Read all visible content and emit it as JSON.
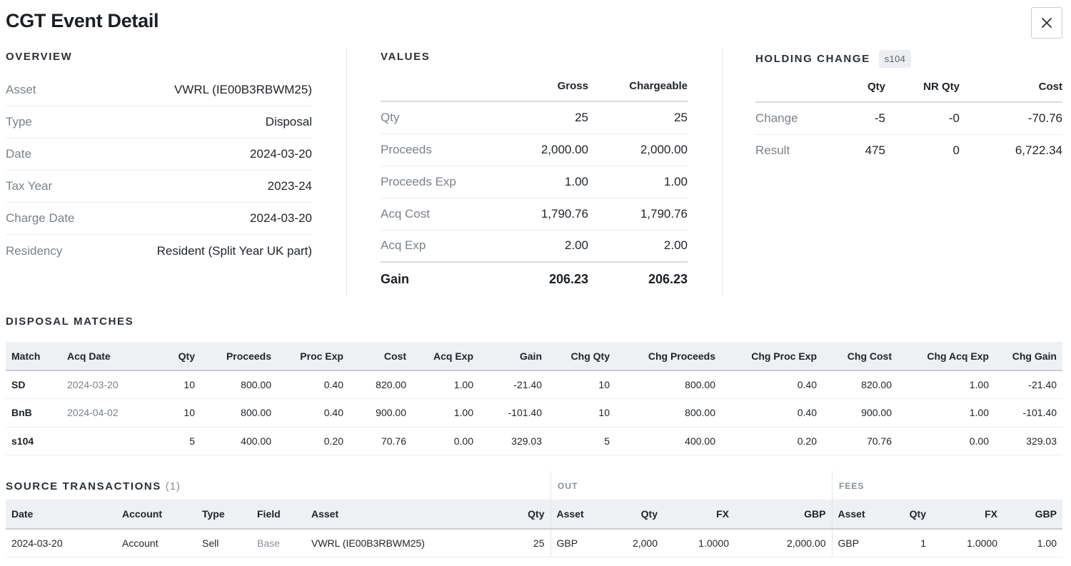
{
  "title": "CGT Event Detail",
  "close_icon": "close-icon",
  "overview": {
    "title": "OVERVIEW",
    "rows": [
      {
        "label": "Asset",
        "value": "VWRL (IE00B3RBWM25)"
      },
      {
        "label": "Type",
        "value": "Disposal"
      },
      {
        "label": "Date",
        "value": "2024-03-20"
      },
      {
        "label": "Tax Year",
        "value": "2023-24"
      },
      {
        "label": "Charge Date",
        "value": "2024-03-20"
      },
      {
        "label": "Residency",
        "value": "Resident (Split Year UK part)"
      }
    ]
  },
  "values": {
    "title": "VALUES",
    "col_gross": "Gross",
    "col_chargeable": "Chargeable",
    "rows": [
      {
        "label": "Qty",
        "gross": "25",
        "chargeable": "25"
      },
      {
        "label": "Proceeds",
        "gross": "2,000.00",
        "chargeable": "2,000.00"
      },
      {
        "label": "Proceeds Exp",
        "gross": "1.00",
        "chargeable": "1.00"
      },
      {
        "label": "Acq Cost",
        "gross": "1,790.76",
        "chargeable": "1,790.76"
      },
      {
        "label": "Acq Exp",
        "gross": "2.00",
        "chargeable": "2.00"
      }
    ],
    "total": {
      "label": "Gain",
      "gross": "206.23",
      "chargeable": "206.23"
    }
  },
  "holding": {
    "title": "HOLDING CHANGE",
    "badge": "s104",
    "col_qty": "Qty",
    "col_nr_qty": "NR Qty",
    "col_cost": "Cost",
    "rows": [
      {
        "label": "Change",
        "qty": "-5",
        "nr_qty": "-0",
        "cost": "-70.76"
      },
      {
        "label": "Result",
        "qty": "475",
        "nr_qty": "0",
        "cost": "6,722.34"
      }
    ]
  },
  "disposal_matches": {
    "title": "DISPOSAL MATCHES",
    "columns": [
      "Match",
      "Acq Date",
      "Qty",
      "Proceeds",
      "Proc Exp",
      "Cost",
      "Acq Exp",
      "Gain",
      "Chg Qty",
      "Chg Proceeds",
      "Chg Proc Exp",
      "Chg Cost",
      "Chg Acq Exp",
      "Chg Gain"
    ],
    "rows": [
      [
        "SD",
        "2024-03-20",
        "10",
        "800.00",
        "0.40",
        "820.00",
        "1.00",
        "-21.40",
        "10",
        "800.00",
        "0.40",
        "820.00",
        "1.00",
        "-21.40"
      ],
      [
        "BnB",
        "2024-04-02",
        "10",
        "800.00",
        "0.40",
        "900.00",
        "1.00",
        "-101.40",
        "10",
        "800.00",
        "0.40",
        "900.00",
        "1.00",
        "-101.40"
      ],
      [
        "s104",
        "",
        "5",
        "400.00",
        "0.20",
        "70.76",
        "0.00",
        "329.03",
        "5",
        "400.00",
        "0.20",
        "70.76",
        "0.00",
        "329.03"
      ]
    ]
  },
  "source_transactions": {
    "title": "SOURCE TRANSACTIONS",
    "count": "(1)",
    "group_out": "OUT",
    "group_fees": "FEES",
    "columns": [
      "Date",
      "Account",
      "Type",
      "Field",
      "Asset",
      "Qty",
      "Asset",
      "Qty",
      "FX",
      "GBP",
      "Asset",
      "Qty",
      "FX",
      "GBP"
    ],
    "rows": [
      [
        "2024-03-20",
        "Account",
        "Sell",
        "Base",
        "VWRL (IE00B3RBWM25)",
        "25",
        "GBP",
        "2,000",
        "1.0000",
        "2,000.00",
        "GBP",
        "1",
        "1.0000",
        "1.00"
      ]
    ]
  }
}
